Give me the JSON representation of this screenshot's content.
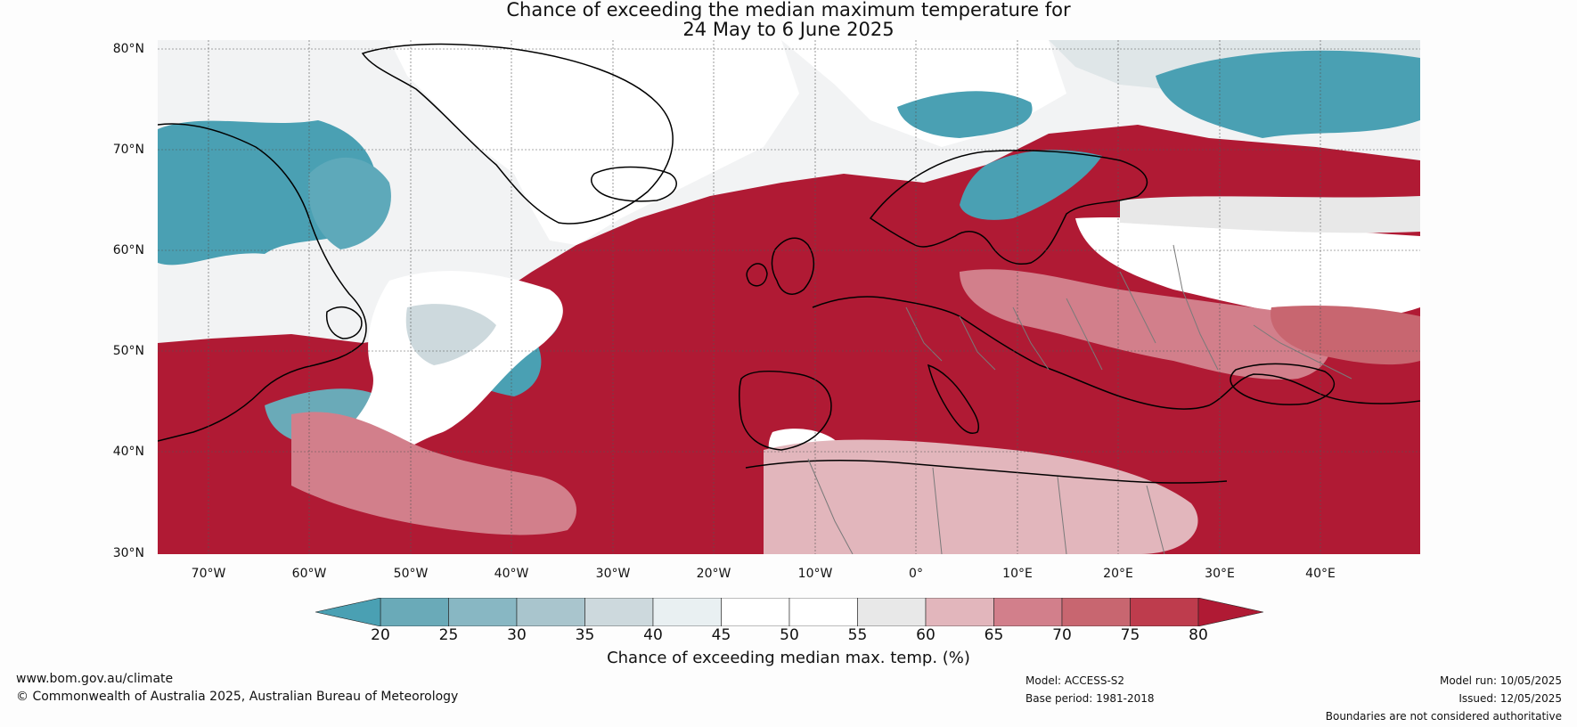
{
  "title": {
    "line1": "Chance of exceeding the median maximum temperature for",
    "line2": "24 May to 6 June 2025"
  },
  "map": {
    "lat_ticks": [
      "80°N",
      "70°N",
      "60°N",
      "50°N",
      "40°N",
      "30°N"
    ],
    "lon_ticks": [
      "70°W",
      "60°W",
      "50°W",
      "40°W",
      "30°W",
      "20°W",
      "10°W",
      "0°",
      "10°E",
      "20°E",
      "30°E",
      "40°E"
    ],
    "extent": {
      "lon": [
        -75,
        50
      ],
      "lat": [
        30,
        81
      ]
    }
  },
  "legend": {
    "label": "Chance of exceeding median max. temp. (%)",
    "ticks": [
      "20",
      "25",
      "30",
      "35",
      "40",
      "45",
      "50",
      "55",
      "60",
      "65",
      "70",
      "75",
      "80"
    ],
    "colors": [
      "#4aa0b3",
      "#6aaab8",
      "#88b7c3",
      "#a9c5cd",
      "#cdd9dd",
      "#e9f0f2",
      "#ffffff",
      "#ffffff",
      "#e8e8e8",
      "#e2b6bc",
      "#d27f8b",
      "#c86670",
      "#be3c4d",
      "#b01a34"
    ],
    "low_color": "#4aa0b3",
    "high_color": "#b01a34"
  },
  "footer": {
    "url": "www.bom.gov.au/climate",
    "copyright": "© Commonwealth of Australia 2025, Australian Bureau of Meteorology",
    "model": "Model: ACCESS-S2",
    "base_period": "Base period: 1981-2018",
    "model_run": "Model run: 10/05/2025",
    "issued": "Issued: 12/05/2025",
    "disclaimer": "Boundaries are not considered authoritative"
  }
}
